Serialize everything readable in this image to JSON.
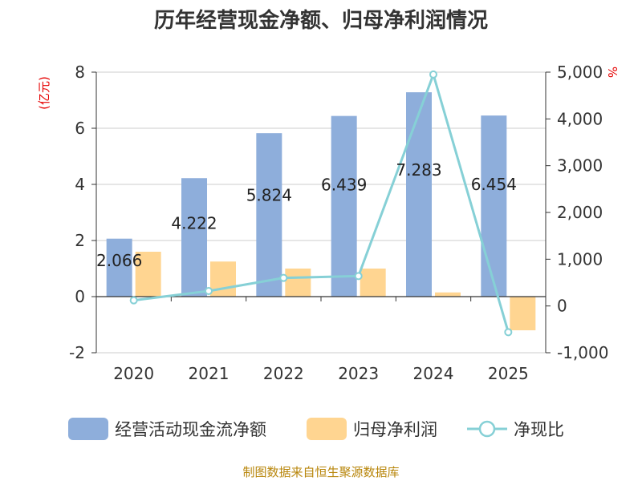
{
  "chart_data": {
    "type": "bar",
    "title": "历年经营现金净额、归母净利润情况",
    "categories": [
      "2020",
      "2021",
      "2022",
      "2023",
      "2024",
      "2025"
    ],
    "series": [
      {
        "name": "经营活动现金流净额",
        "kind": "bar",
        "axis": "left",
        "color": "#8eaedb",
        "values": [
          2.066,
          4.222,
          5.824,
          6.439,
          7.283,
          6.454
        ]
      },
      {
        "name": "归母净利润",
        "kind": "bar",
        "axis": "left",
        "color": "#ffd591",
        "values": [
          1.6,
          1.25,
          1.0,
          1.0,
          0.15,
          -1.2
        ]
      },
      {
        "name": "净现比",
        "kind": "line",
        "axis": "right",
        "color": "#86d0d6",
        "values": [
          120,
          320,
          600,
          640,
          4950,
          -560
        ]
      }
    ],
    "data_labels": [
      "2.066",
      "4.222",
      "5.824",
      "6.439",
      "7.283",
      "6.454"
    ],
    "y_left": {
      "unit": "(亿元)",
      "range": [
        -2,
        8
      ],
      "ticks": [
        -2,
        0,
        2,
        4,
        6,
        8
      ],
      "tick_labels": [
        "-2",
        "0",
        "2",
        "4",
        "6",
        "8"
      ]
    },
    "y_right": {
      "unit": "%",
      "range": [
        -1000,
        5000
      ],
      "ticks": [
        -1000,
        0,
        1000,
        2000,
        3000,
        4000,
        5000
      ],
      "tick_labels": [
        "-1,000",
        "0",
        "1,000",
        "2,000",
        "3,000",
        "4,000",
        "5,000"
      ]
    },
    "grid": true,
    "legend_position": "bottom",
    "source": "制图数据来自恒生聚源数据库"
  }
}
